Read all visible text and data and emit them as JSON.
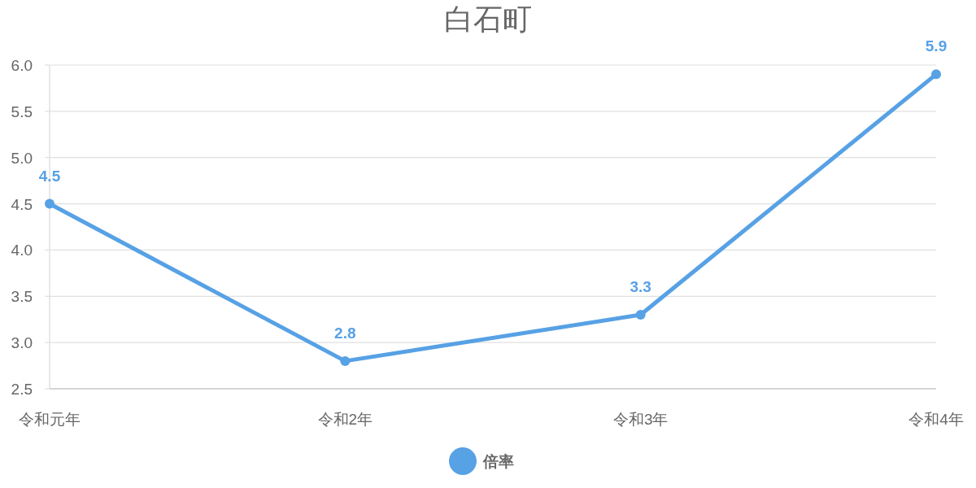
{
  "chart_data": {
    "type": "line",
    "title": "白石町",
    "categories": [
      "令和元年",
      "令和2年",
      "令和3年",
      "令和4年"
    ],
    "series": [
      {
        "name": "倍率",
        "color": "#57a1e5",
        "values": [
          4.5,
          2.8,
          3.3,
          5.9
        ]
      }
    ],
    "ylim": [
      2.5,
      6.0
    ],
    "yticks": [
      2.5,
      {
        "value": 3,
        "label": "3.0"
      },
      3.5,
      {
        "value": 4,
        "label": "4.0"
      },
      4.5,
      {
        "value": 5,
        "label": "5.0"
      },
      5.5,
      {
        "value": 6,
        "label": "6.0"
      }
    ],
    "grid": "y",
    "legend": "bottom",
    "marker": "circle",
    "line_style": "solid",
    "data_labels": true
  }
}
